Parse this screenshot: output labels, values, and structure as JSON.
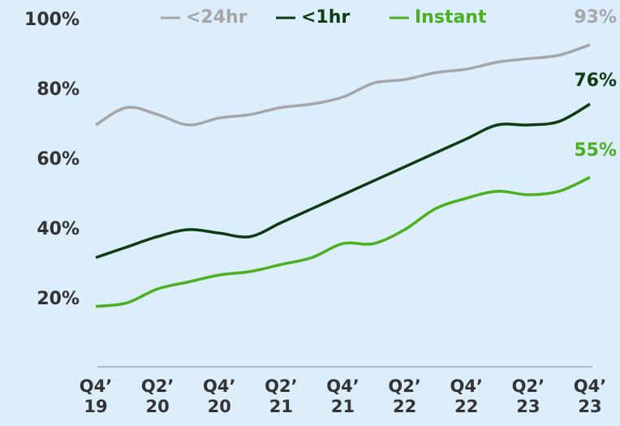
{
  "chart_data": {
    "type": "line",
    "categories": [
      "Q4’ 19",
      null,
      "Q2’ 20",
      null,
      "Q4’ 20",
      null,
      "Q2’ 21",
      null,
      "Q4’ 21",
      null,
      "Q2’ 22",
      null,
      "Q4’ 22",
      null,
      "Q2’ 23",
      null,
      "Q4’ 23"
    ],
    "series": [
      {
        "name": "<24hr",
        "color": "#a6a6a6",
        "values": [
          70,
          75,
          73,
          70,
          72,
          73,
          75,
          76,
          78,
          82,
          83,
          85,
          86,
          88,
          89,
          90,
          93
        ],
        "value_labels": [
          null,
          null,
          null,
          null,
          null,
          null,
          null,
          null,
          null,
          null,
          null,
          null,
          null,
          null,
          null,
          null,
          "93%"
        ]
      },
      {
        "name": "<1hr",
        "color": "#0d3b12",
        "values": [
          32,
          35,
          38,
          40,
          39,
          38,
          42,
          46,
          50,
          54,
          58,
          62,
          66,
          70,
          70,
          71,
          76
        ],
        "value_labels": [
          null,
          null,
          null,
          null,
          null,
          null,
          null,
          null,
          null,
          null,
          null,
          null,
          null,
          null,
          null,
          null,
          "76%"
        ]
      },
      {
        "name": "Instant",
        "color": "#4caf1e",
        "values": [
          18,
          19,
          23,
          25,
          27,
          28,
          30,
          32,
          36,
          36,
          40,
          46,
          49,
          51,
          50,
          51,
          55
        ],
        "value_labels": [
          null,
          null,
          null,
          null,
          null,
          null,
          null,
          null,
          null,
          null,
          null,
          null,
          null,
          null,
          null,
          null,
          "55%"
        ]
      }
    ],
    "ylim": [
      0,
      100
    ],
    "yticks": [
      {
        "value": 20,
        "label": "20%"
      },
      {
        "value": 40,
        "label": "40%"
      },
      {
        "value": 60,
        "label": "60%"
      },
      {
        "value": 80,
        "label": "80%"
      },
      {
        "value": 100,
        "label": "100%"
      }
    ],
    "grid": false,
    "legend": "top"
  }
}
